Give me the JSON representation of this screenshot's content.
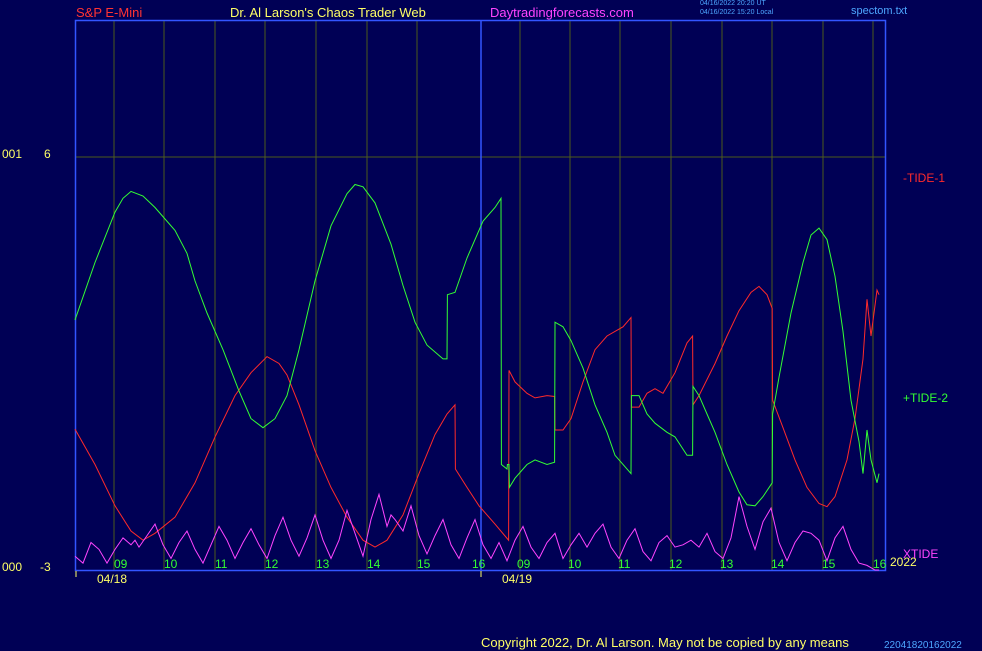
{
  "header": {
    "symbol": "S&P E-Mini",
    "author": "Dr. Al Larson's Chaos Trader Web",
    "site": "Daytradingforecasts.com",
    "stamp_utc": "04/16/2022 20:20 UT",
    "stamp_local": "04/16/2022 15:20 Local",
    "file": "spectom.txt"
  },
  "footer": {
    "copyright": "Copyright 2022, Dr. Al Larson. May not be copied by any means",
    "stamp": "22041820162022"
  },
  "colors": {
    "background": "#000055",
    "frame": "#3355ff",
    "grid": "#4d5a1c",
    "tide1": "#ff2a2a",
    "tide2": "#33ff33",
    "xtide": "#ff44ff",
    "text_red": "#ff3333",
    "text_yellow": "#ffff66",
    "text_magenta": "#ff44ff",
    "text_blue": "#4da6ff",
    "text_white": "#ffffff"
  },
  "chart_data": {
    "type": "line",
    "ylim": [
      -3,
      6
    ],
    "y_labels": {
      "top_left": "001",
      "top_value": "6",
      "bottom_left": "000",
      "bottom_value": "-3"
    },
    "hour_ticks": [
      "09",
      "10",
      "11",
      "12",
      "13",
      "14",
      "15",
      "16",
      "09",
      "10",
      "11",
      "12",
      "13",
      "14",
      "15",
      "16"
    ],
    "dates": [
      "04/18",
      "04/19"
    ],
    "year": "2022",
    "series_labels": {
      "tide1": "-TIDE-1",
      "tide2": "+TIDE-2",
      "xtide": "XTIDE"
    },
    "tide1": [
      [
        0,
        0.07
      ],
      [
        5,
        -0.7
      ],
      [
        10,
        -1.6
      ],
      [
        14,
        -2.15
      ],
      [
        17,
        -2.35
      ],
      [
        20,
        -2.2
      ],
      [
        25,
        -1.85
      ],
      [
        30,
        -1.1
      ],
      [
        35,
        -0.1
      ],
      [
        40,
        0.8
      ],
      [
        44,
        1.3
      ],
      [
        48,
        1.65
      ],
      [
        51,
        1.5
      ],
      [
        53,
        1.25
      ],
      [
        56,
        0.6
      ],
      [
        60,
        -0.4
      ],
      [
        64,
        -1.2
      ],
      [
        68,
        -1.85
      ],
      [
        72,
        -2.35
      ],
      [
        75,
        -2.5
      ],
      [
        78,
        -2.35
      ],
      [
        82,
        -1.8
      ],
      [
        86,
        -0.9
      ],
      [
        90,
        -0.05
      ],
      [
        93,
        0.4
      ],
      [
        95,
        0.6
      ],
      [
        95.1,
        -0.8
      ],
      [
        98,
        -1.2
      ],
      [
        101,
        -1.6
      ],
      [
        105,
        -2.0
      ],
      [
        108.4,
        -2.35
      ],
      [
        108.5,
        1.35
      ],
      [
        110,
        1.1
      ],
      [
        113,
        0.85
      ],
      [
        115,
        0.75
      ],
      [
        118,
        0.8
      ],
      [
        119.9,
        0.78
      ],
      [
        120,
        0.05
      ],
      [
        122,
        0.05
      ],
      [
        124,
        0.3
      ],
      [
        127,
        1.1
      ],
      [
        130,
        1.8
      ],
      [
        133,
        2.1
      ],
      [
        137,
        2.3
      ],
      [
        139,
        2.5
      ],
      [
        139.1,
        0.55
      ],
      [
        141,
        0.55
      ],
      [
        143,
        0.85
      ],
      [
        145,
        0.95
      ],
      [
        147,
        0.85
      ],
      [
        150,
        1.3
      ],
      [
        153,
        1.95
      ],
      [
        154.4,
        2.1
      ],
      [
        154.5,
        0.6
      ],
      [
        156,
        0.8
      ],
      [
        160,
        1.5
      ],
      [
        163,
        2.1
      ],
      [
        166,
        2.65
      ],
      [
        169,
        3.05
      ],
      [
        171,
        3.18
      ],
      [
        173,
        3.0
      ],
      [
        174.3,
        2.7
      ],
      [
        174.4,
        0.7
      ],
      [
        177,
        0.1
      ],
      [
        180,
        -0.6
      ],
      [
        183,
        -1.2
      ],
      [
        186,
        -1.55
      ],
      [
        188,
        -1.62
      ],
      [
        190,
        -1.4
      ],
      [
        193,
        -0.6
      ],
      [
        195,
        0.3
      ],
      [
        197,
        1.6
      ],
      [
        198,
        2.9
      ],
      [
        199,
        2.1
      ],
      [
        200.5,
        3.1
      ],
      [
        201,
        3.0
      ]
    ],
    "tide2": [
      [
        0,
        2.45
      ],
      [
        5,
        3.7
      ],
      [
        10,
        4.8
      ],
      [
        12,
        5.1
      ],
      [
        14,
        5.25
      ],
      [
        17,
        5.15
      ],
      [
        20,
        4.9
      ],
      [
        25,
        4.4
      ],
      [
        28,
        3.9
      ],
      [
        30,
        3.3
      ],
      [
        33,
        2.6
      ],
      [
        37,
        1.8
      ],
      [
        41,
        0.9
      ],
      [
        44,
        0.3
      ],
      [
        47,
        0.1
      ],
      [
        50,
        0.3
      ],
      [
        53,
        0.8
      ],
      [
        56,
        1.8
      ],
      [
        60,
        3.3
      ],
      [
        64,
        4.5
      ],
      [
        68,
        5.2
      ],
      [
        70,
        5.4
      ],
      [
        72,
        5.35
      ],
      [
        75,
        5.0
      ],
      [
        79,
        4.1
      ],
      [
        82,
        3.2
      ],
      [
        85,
        2.4
      ],
      [
        88,
        1.9
      ],
      [
        92,
        1.6
      ],
      [
        93,
        1.6
      ],
      [
        93.1,
        3.0
      ],
      [
        95,
        3.05
      ],
      [
        98,
        3.8
      ],
      [
        102,
        4.6
      ],
      [
        105,
        4.9
      ],
      [
        106.5,
        5.1
      ],
      [
        106.6,
        -0.7
      ],
      [
        108,
        -0.8
      ],
      [
        108.1,
        -0.7
      ],
      [
        108.5,
        -0.7
      ],
      [
        108.6,
        -1.2
      ],
      [
        110,
        -1.0
      ],
      [
        113,
        -0.7
      ],
      [
        115,
        -0.6
      ],
      [
        118,
        -0.7
      ],
      [
        119.9,
        -0.65
      ],
      [
        120,
        2.4
      ],
      [
        122,
        2.3
      ],
      [
        124,
        2.0
      ],
      [
        127,
        1.4
      ],
      [
        130,
        0.6
      ],
      [
        133,
        0.0
      ],
      [
        135,
        -0.5
      ],
      [
        139,
        -0.9
      ],
      [
        139.1,
        0.8
      ],
      [
        141,
        0.8
      ],
      [
        143,
        0.4
      ],
      [
        145,
        0.2
      ],
      [
        148,
        0.0
      ],
      [
        150,
        -0.1
      ],
      [
        153,
        -0.5
      ],
      [
        154.4,
        -0.5
      ],
      [
        154.5,
        1.0
      ],
      [
        156,
        0.8
      ],
      [
        158,
        0.4
      ],
      [
        160,
        0.0
      ],
      [
        163,
        -0.7
      ],
      [
        166,
        -1.3
      ],
      [
        168,
        -1.58
      ],
      [
        170,
        -1.6
      ],
      [
        172,
        -1.4
      ],
      [
        174.3,
        -1.1
      ],
      [
        174.4,
        0.4
      ],
      [
        176,
        1.2
      ],
      [
        179,
        2.6
      ],
      [
        182,
        3.7
      ],
      [
        184,
        4.3
      ],
      [
        186,
        4.45
      ],
      [
        188,
        4.2
      ],
      [
        190,
        3.4
      ],
      [
        192,
        2.2
      ],
      [
        194,
        0.7
      ],
      [
        196,
        -0.2
      ],
      [
        197,
        -0.9
      ],
      [
        198,
        0.05
      ],
      [
        199,
        -0.6
      ],
      [
        200.5,
        -1.1
      ],
      [
        201,
        -0.9
      ]
    ],
    "xtide": [
      [
        0,
        -2.7
      ],
      [
        2,
        -2.85
      ],
      [
        4,
        -2.4
      ],
      [
        6,
        -2.55
      ],
      [
        8,
        -2.85
      ],
      [
        10,
        -2.55
      ],
      [
        12,
        -2.3
      ],
      [
        14,
        -2.45
      ],
      [
        15,
        -2.35
      ],
      [
        16,
        -2.5
      ],
      [
        18,
        -2.25
      ],
      [
        20,
        -2.0
      ],
      [
        22,
        -2.45
      ],
      [
        24,
        -2.75
      ],
      [
        26,
        -2.4
      ],
      [
        28,
        -2.15
      ],
      [
        30,
        -2.55
      ],
      [
        32,
        -2.85
      ],
      [
        34,
        -2.45
      ],
      [
        36,
        -2.05
      ],
      [
        38,
        -2.35
      ],
      [
        40,
        -2.75
      ],
      [
        42,
        -2.4
      ],
      [
        44,
        -2.1
      ],
      [
        46,
        -2.45
      ],
      [
        48,
        -2.75
      ],
      [
        50,
        -2.25
      ],
      [
        52,
        -1.85
      ],
      [
        54,
        -2.35
      ],
      [
        56,
        -2.7
      ],
      [
        58,
        -2.3
      ],
      [
        60,
        -1.8
      ],
      [
        62,
        -2.35
      ],
      [
        64,
        -2.75
      ],
      [
        66,
        -2.35
      ],
      [
        68,
        -1.7
      ],
      [
        70,
        -2.2
      ],
      [
        72,
        -2.7
      ],
      [
        74,
        -1.9
      ],
      [
        76,
        -1.35
      ],
      [
        78,
        -2.05
      ],
      [
        79,
        -1.8
      ],
      [
        80,
        -1.9
      ],
      [
        82,
        -2.15
      ],
      [
        84,
        -1.6
      ],
      [
        86,
        -2.25
      ],
      [
        88,
        -2.65
      ],
      [
        90,
        -2.25
      ],
      [
        92,
        -1.9
      ],
      [
        94,
        -2.45
      ],
      [
        96,
        -2.75
      ],
      [
        98,
        -2.3
      ],
      [
        100,
        -1.9
      ],
      [
        102,
        -2.45
      ],
      [
        104,
        -2.75
      ],
      [
        106,
        -2.4
      ],
      [
        108,
        -2.8
      ],
      [
        110,
        -2.35
      ],
      [
        112,
        -2.05
      ],
      [
        114,
        -2.5
      ],
      [
        116,
        -2.75
      ],
      [
        118,
        -2.4
      ],
      [
        120,
        -2.2
      ],
      [
        122,
        -2.75
      ],
      [
        124,
        -2.45
      ],
      [
        126,
        -2.2
      ],
      [
        128,
        -2.5
      ],
      [
        130,
        -2.2
      ],
      [
        132,
        -2.0
      ],
      [
        134,
        -2.5
      ],
      [
        136,
        -2.75
      ],
      [
        138,
        -2.35
      ],
      [
        140,
        -2.1
      ],
      [
        142,
        -2.6
      ],
      [
        144,
        -2.8
      ],
      [
        146,
        -2.4
      ],
      [
        148,
        -2.25
      ],
      [
        150,
        -2.5
      ],
      [
        152,
        -2.45
      ],
      [
        154,
        -2.35
      ],
      [
        156,
        -2.5
      ],
      [
        158,
        -2.2
      ],
      [
        160,
        -2.6
      ],
      [
        162,
        -2.75
      ],
      [
        164,
        -2.3
      ],
      [
        166,
        -1.4
      ],
      [
        168,
        -2.05
      ],
      [
        170,
        -2.55
      ],
      [
        172,
        -1.95
      ],
      [
        174,
        -1.65
      ],
      [
        176,
        -2.4
      ],
      [
        178,
        -2.8
      ],
      [
        180,
        -2.4
      ],
      [
        182,
        -2.15
      ],
      [
        184,
        -2.2
      ],
      [
        186,
        -2.35
      ],
      [
        188,
        -2.8
      ],
      [
        190,
        -2.3
      ],
      [
        192,
        -2.05
      ],
      [
        194,
        -2.55
      ],
      [
        196,
        -2.85
      ],
      [
        198,
        -2.9
      ],
      [
        200,
        -3.0
      ],
      [
        201,
        -3.0
      ]
    ]
  }
}
